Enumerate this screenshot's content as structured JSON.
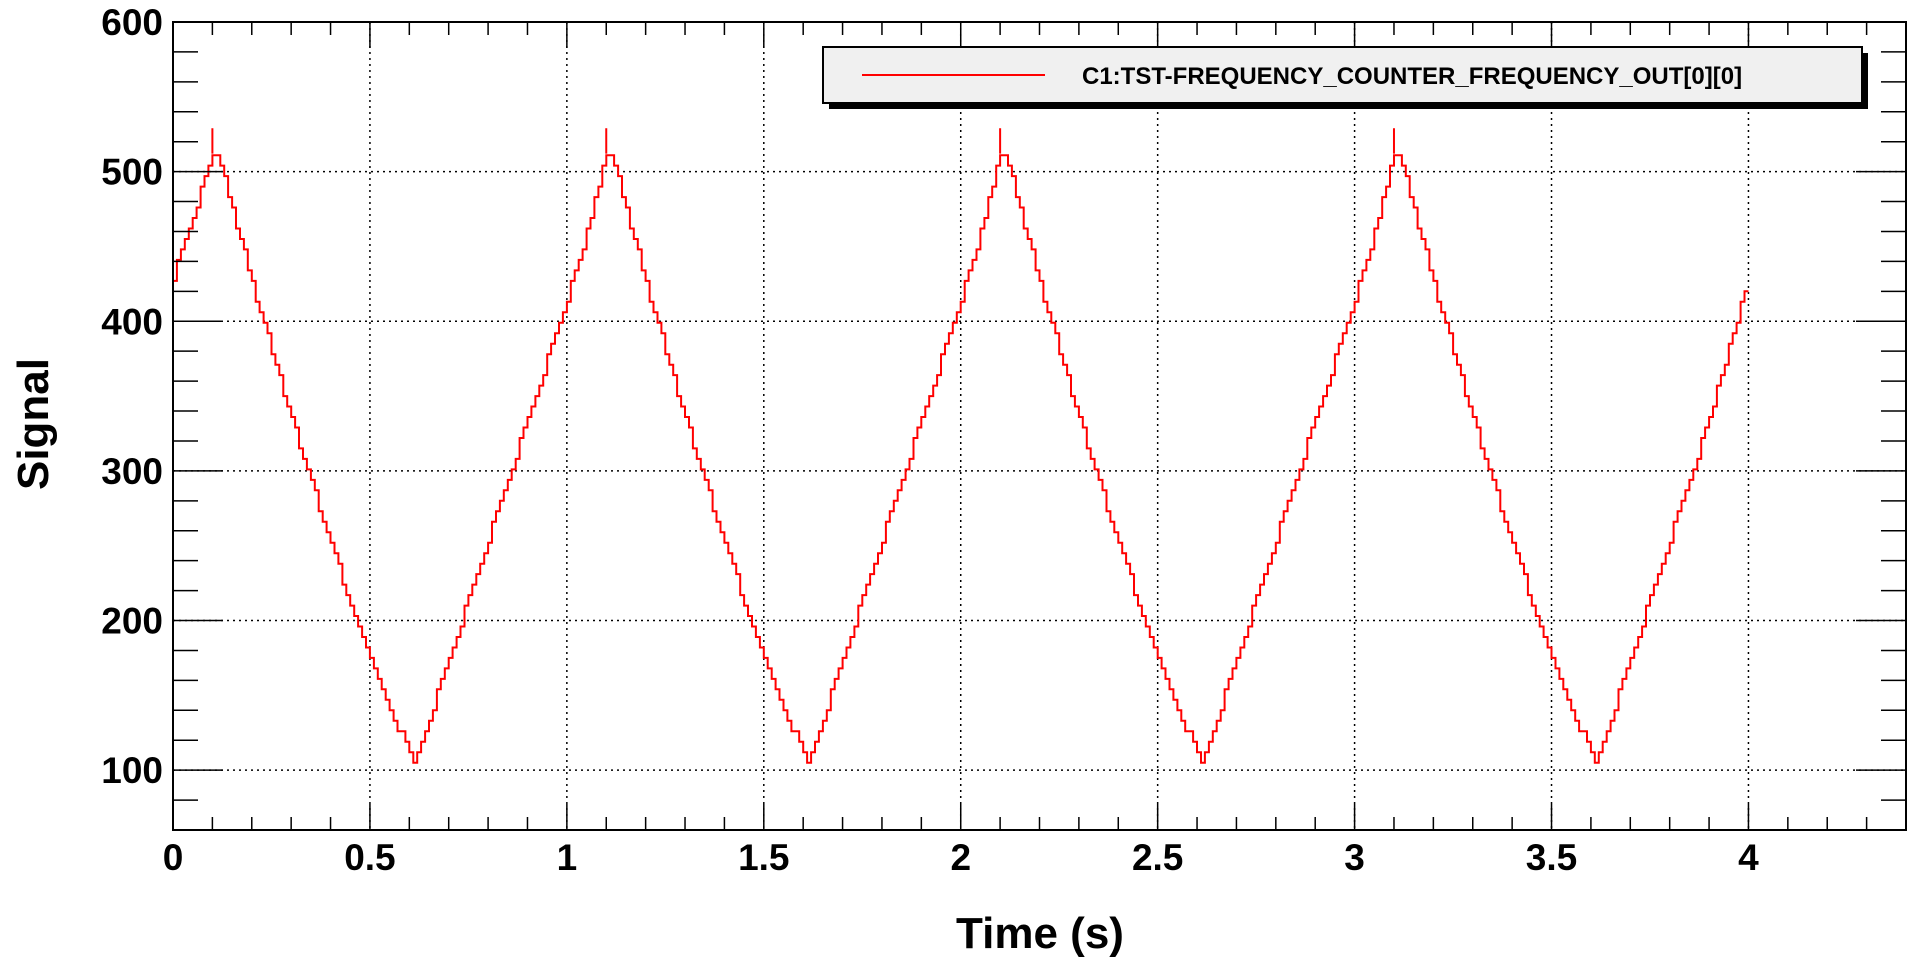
{
  "chart_data": {
    "type": "line",
    "xlabel": "Time (s)",
    "ylabel": "Signal",
    "xlim": [
      0,
      4.4
    ],
    "ylim": [
      60,
      600
    ],
    "x_ticks": [
      0,
      0.5,
      1,
      1.5,
      2,
      2.5,
      3,
      3.5,
      4
    ],
    "x_tick_labels": [
      "0",
      "0.5",
      "1",
      "1.5",
      "2",
      "2.5",
      "3",
      "3.5",
      "4"
    ],
    "y_ticks": [
      100,
      200,
      300,
      400,
      500,
      600
    ],
    "y_tick_labels": [
      "100",
      "200",
      "300",
      "400",
      "500",
      "600"
    ],
    "grid": true,
    "legend_position": "top-right",
    "series": [
      {
        "name": "C1:TST-FREQUENCY_COUNTER_FREQUENCY_OUT[0][0]",
        "color": "#ff0000",
        "x": [
          0.0,
          0.05,
          0.1,
          0.12,
          0.2,
          0.3,
          0.4,
          0.5,
          0.61,
          0.7,
          0.8,
          0.9,
          1.0,
          1.05,
          1.1,
          1.12,
          1.2,
          1.3,
          1.4,
          1.5,
          1.61,
          1.7,
          1.8,
          1.9,
          2.0,
          2.05,
          2.1,
          2.12,
          2.2,
          2.3,
          2.4,
          2.5,
          2.61,
          2.7,
          2.8,
          2.9,
          3.0,
          3.05,
          3.1,
          3.12,
          3.2,
          3.3,
          3.4,
          3.5,
          3.61,
          3.7,
          3.8,
          3.9,
          4.0
        ],
        "y": [
          430,
          470,
          512,
          505,
          425,
          335,
          250,
          175,
          103,
          175,
          255,
          335,
          415,
          460,
          512,
          505,
          425,
          335,
          250,
          175,
          103,
          175,
          255,
          335,
          415,
          460,
          512,
          505,
          425,
          335,
          250,
          175,
          103,
          175,
          255,
          335,
          415,
          460,
          512,
          505,
          425,
          335,
          250,
          175,
          103,
          175,
          255,
          335,
          430
        ]
      }
    ]
  }
}
